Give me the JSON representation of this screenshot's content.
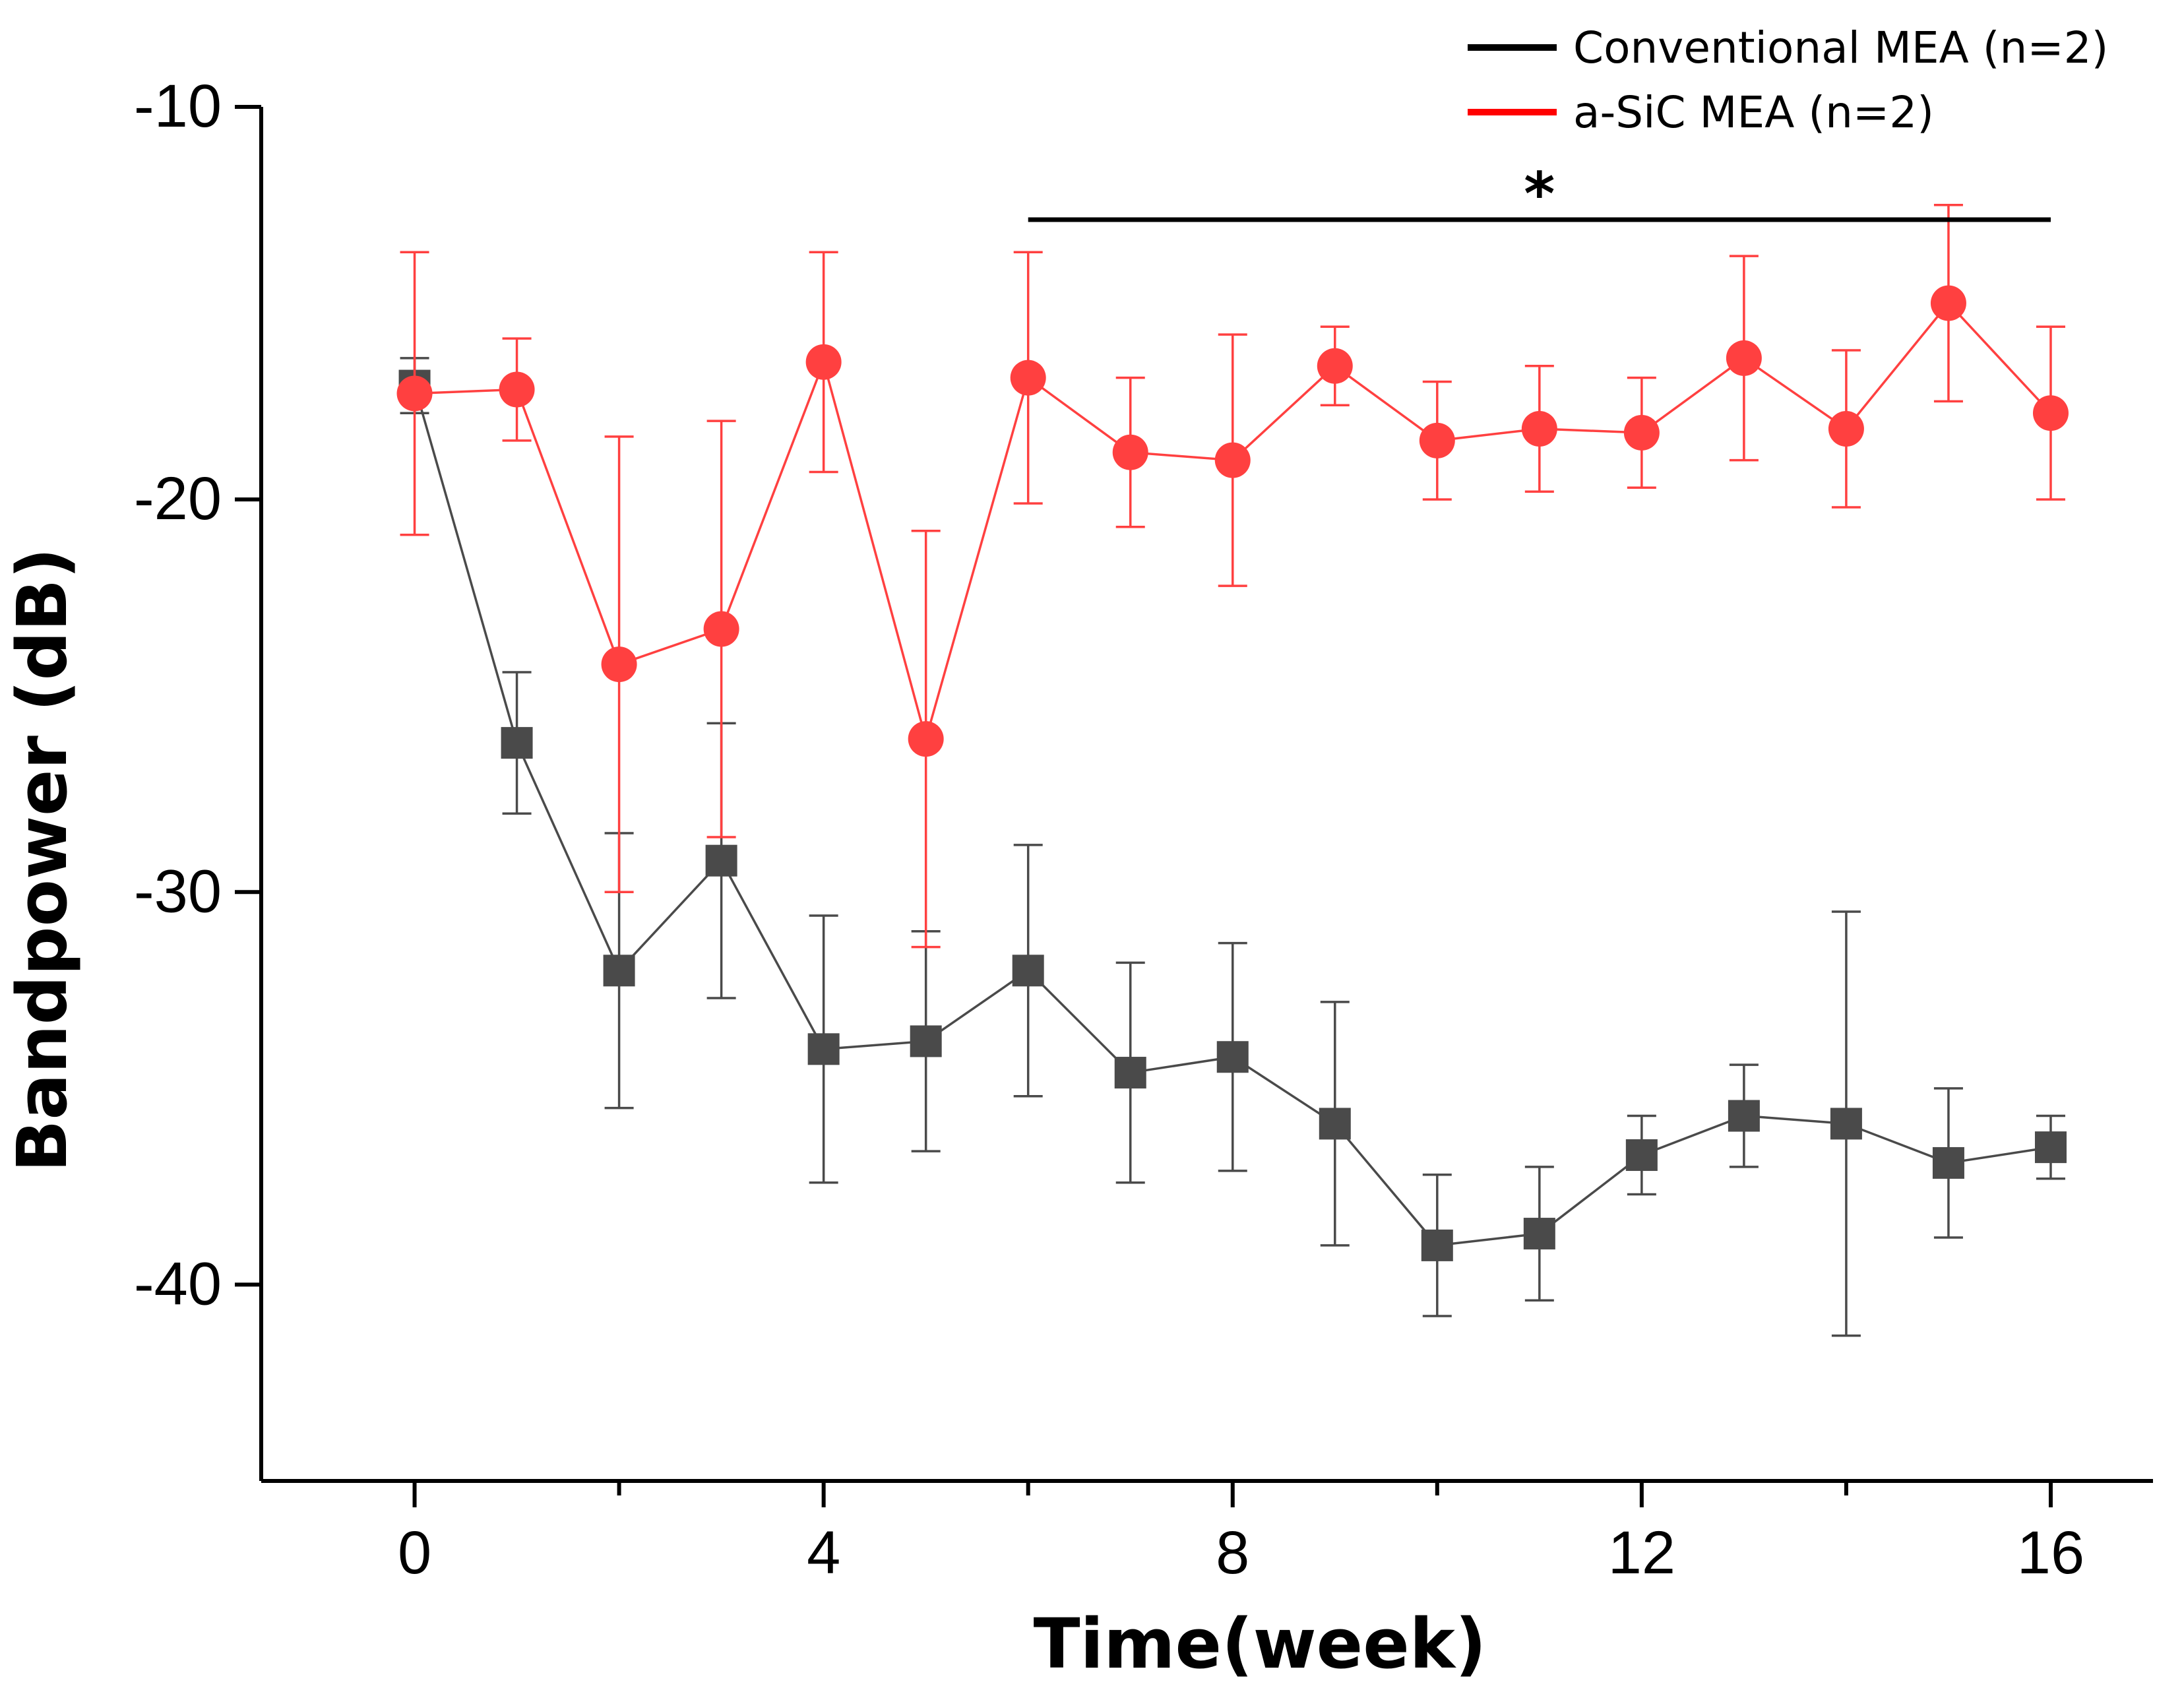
{
  "chart_data": {
    "type": "line",
    "title": "",
    "xlabel": "Time(week)",
    "ylabel": "Bandpower (dB)",
    "xlim": [
      -1.5,
      17
    ],
    "ylim": [
      -45,
      -10
    ],
    "x_ticks": [
      0,
      4,
      8,
      12,
      16
    ],
    "x_minor_ticks": [
      2,
      6,
      10,
      14
    ],
    "x_tick_labels": [
      "0",
      "4",
      "8",
      "12",
      "16"
    ],
    "y_ticks": [
      -10,
      -20,
      -30,
      -40
    ],
    "y_tick_labels": [
      "-10",
      "-20",
      "-30",
      "-40"
    ],
    "legend_position": "top-right",
    "x": [
      0,
      1,
      2,
      3,
      4,
      5,
      6,
      7,
      8,
      9,
      10,
      11,
      12,
      13,
      14,
      15,
      16
    ],
    "series": [
      {
        "name": "Conventional MEA (n=2)",
        "legend_color": "#000000",
        "color": "#4a4a4a",
        "marker": "square",
        "values": [
          -17.1,
          -26.2,
          -32.0,
          -29.2,
          -34.0,
          -33.8,
          -32.0,
          -34.6,
          -34.2,
          -35.9,
          -39.0,
          -38.7,
          -36.7,
          -35.7,
          -35.9,
          -36.9,
          -36.5
        ],
        "errors": [
          0.7,
          1.8,
          3.5,
          3.5,
          3.4,
          2.8,
          3.2,
          2.8,
          2.9,
          3.1,
          1.8,
          1.7,
          1.0,
          1.3,
          5.4,
          1.9,
          0.8
        ]
      },
      {
        "name": "a-SiC MEA (n=2)",
        "legend_color": "#ff0000",
        "color": "#ff4040",
        "marker": "circle",
        "values": [
          -17.3,
          -17.2,
          -24.2,
          -23.3,
          -16.5,
          -26.1,
          -16.9,
          -18.8,
          -19.0,
          -16.6,
          -18.5,
          -18.2,
          -18.3,
          -16.4,
          -18.2,
          -15.0,
          -17.8
        ],
        "errors": [
          3.6,
          1.3,
          5.8,
          5.3,
          2.8,
          5.3,
          3.2,
          1.9,
          3.2,
          1.0,
          1.5,
          1.6,
          1.4,
          2.6,
          2.0,
          2.5,
          2.2
        ]
      }
    ],
    "annotations": [
      {
        "text": "*",
        "x_start": 6,
        "x_end": 16
      }
    ]
  }
}
